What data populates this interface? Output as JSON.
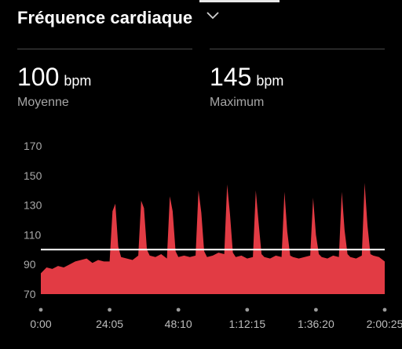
{
  "header": {
    "title": "Fréquence cardiaque",
    "dropdown_icon": "chevron-down-icon"
  },
  "metrics": [
    {
      "value": "100",
      "unit": "bpm",
      "label": "Moyenne"
    },
    {
      "value": "145",
      "unit": "bpm",
      "label": "Maximum"
    }
  ],
  "colors": {
    "background": "#000000",
    "series": "#e23b44",
    "average_line": "#ffffff",
    "label": "#a6a6a6"
  },
  "chart_data": {
    "type": "area",
    "ylim": [
      70,
      170
    ],
    "y_ticks": [
      "170",
      "150",
      "130",
      "110",
      "90",
      "70"
    ],
    "x_ticks": [
      "0:00",
      "24:05",
      "48:10",
      "1:12:15",
      "1:36:20",
      "2:00:25"
    ],
    "x_unit_note": "minutes",
    "average": 100,
    "series": [
      {
        "x": [
          0,
          2,
          4,
          6,
          8,
          10,
          12,
          14,
          16,
          18,
          20,
          22,
          24,
          25,
          26,
          27,
          28,
          30,
          32,
          34,
          35,
          36,
          37,
          38,
          40,
          42,
          44,
          45,
          46,
          47,
          48,
          50,
          52,
          54,
          55,
          56,
          57,
          58,
          60,
          62,
          64,
          65,
          66,
          67,
          68,
          70,
          72,
          74,
          75,
          76,
          77,
          78,
          80,
          82,
          84,
          85,
          86,
          87,
          88,
          90,
          92,
          94,
          95,
          96,
          97,
          98,
          100,
          102,
          104,
          105,
          106,
          107,
          108,
          110,
          112,
          113,
          114,
          115,
          116,
          118,
          120
        ],
        "values": [
          84,
          88,
          87,
          89,
          88,
          90,
          92,
          93,
          94,
          91,
          93,
          92,
          92,
          126,
          131,
          102,
          95,
          94,
          93,
          96,
          133,
          128,
          100,
          96,
          95,
          97,
          94,
          136,
          126,
          99,
          95,
          96,
          95,
          96,
          140,
          125,
          99,
          95,
          96,
          98,
          97,
          144,
          124,
          98,
          95,
          96,
          94,
          95,
          140,
          118,
          97,
          95,
          94,
          96,
          95,
          139,
          112,
          96,
          95,
          94,
          95,
          96,
          135,
          110,
          97,
          95,
          94,
          96,
          95,
          139,
          113,
          97,
          95,
          94,
          96,
          145,
          116,
          97,
          96,
          95,
          92
        ]
      }
    ]
  }
}
